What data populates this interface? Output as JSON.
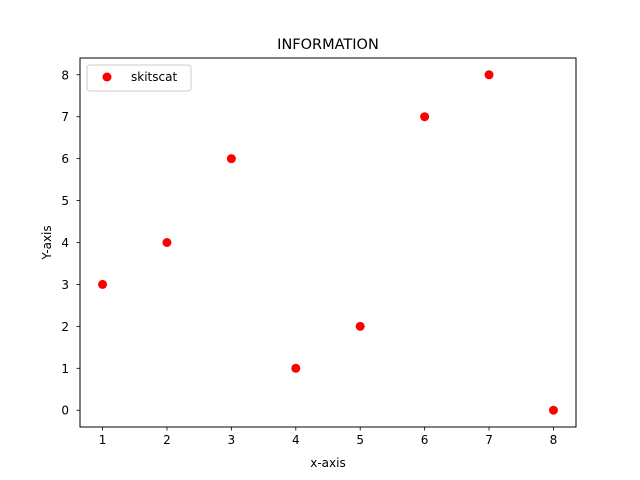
{
  "chart_data": {
    "type": "scatter",
    "title": "INFORMATION",
    "xlabel": "x-axis",
    "ylabel": "Y-axis",
    "xlim": [
      0.65,
      8.35
    ],
    "ylim": [
      -0.4,
      8.4
    ],
    "xticks": [
      1,
      2,
      3,
      4,
      5,
      6,
      7,
      8
    ],
    "yticks": [
      0,
      1,
      2,
      3,
      4,
      5,
      6,
      7,
      8
    ],
    "grid": false,
    "legend_position": "top-left",
    "series": [
      {
        "name": "skitscat",
        "color": "#ff0000",
        "marker": "circle",
        "x": [
          1,
          2,
          3,
          4,
          5,
          6,
          7,
          8
        ],
        "y": [
          3,
          4,
          6,
          1,
          2,
          7,
          8,
          0
        ]
      }
    ]
  }
}
